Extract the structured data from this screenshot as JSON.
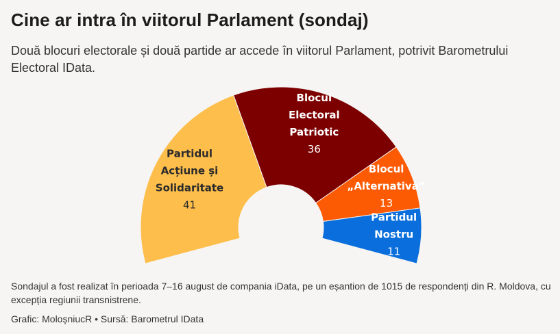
{
  "header": {
    "title": "Cine ar intra în viitorul Parlament (sondaj)",
    "subtitle": "Două blocuri electorale și două partide ar accede în viitorul Parlament, potrivit Barometrului Electoral IData."
  },
  "chart_data": {
    "type": "parliament-arc",
    "total": 101,
    "series": [
      {
        "name": "Partidul Acțiune și Solidaritate",
        "label_lines": [
          "Partidul",
          "Acțiune și",
          "Solidaritate"
        ],
        "value": 41,
        "color": "#fdbe4b",
        "text_color": "#2b2b2b"
      },
      {
        "name": "Blocul Electoral Patriotic",
        "label_lines": [
          "Blocul",
          "Electoral",
          "Patriotic"
        ],
        "value": 36,
        "color": "#7d0000",
        "text_color": "#ffffff"
      },
      {
        "name": "Blocul „Alternativa”",
        "label_lines": [
          "Blocul",
          "„Alternativa”"
        ],
        "value": 13,
        "color": "#fc5a03",
        "text_color": "#ffffff"
      },
      {
        "name": "Partidul Nostru",
        "label_lines": [
          "Partidul",
          "Nostru"
        ],
        "value": 11,
        "color": "#0a6fdc",
        "text_color": "#ffffff"
      }
    ]
  },
  "footer": {
    "notes": "Sondajul a fost realizat în perioada 7–16 august de compania iData, pe un eșantion de 1015 de respondenți din R. Moldova, cu excepția regiunii transnistrene.",
    "credit": "Grafic: MoloșniucR • Sursă: Barometrul IData"
  }
}
